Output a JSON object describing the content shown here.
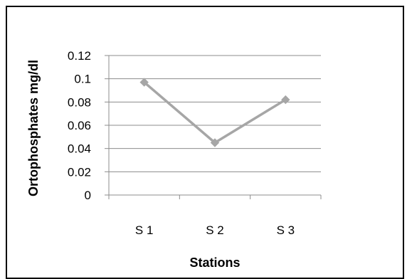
{
  "chart_data": {
    "type": "line",
    "title": "",
    "xlabel": "Stations",
    "ylabel": "Ortophosphates mg/dl",
    "categories": [
      "S 1",
      "S 2",
      "S 3"
    ],
    "series": [
      {
        "values": [
          0.097,
          0.045,
          0.082
        ]
      }
    ],
    "ylim": [
      0,
      0.12
    ],
    "yticks": [
      "0",
      "0.02",
      "0.04",
      "0.06",
      "0.08",
      "0.1",
      "0.12"
    ],
    "ytick_values": [
      0,
      0.02,
      0.04,
      0.06,
      0.08,
      0.1,
      0.12
    ],
    "grid": true,
    "legend": "none",
    "line_color": "#a6a6a6",
    "grid_color": "#8c8c8c",
    "axis_color": "#8c8c8c"
  }
}
